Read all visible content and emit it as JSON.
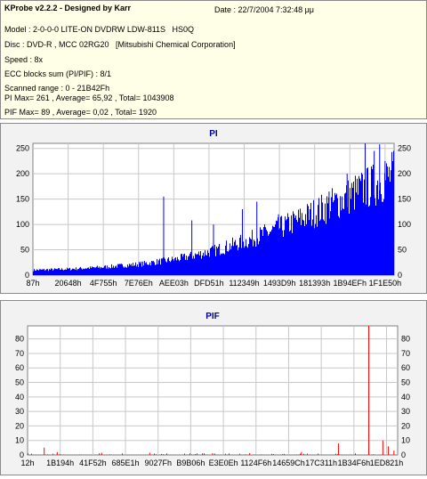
{
  "info": {
    "title": "KProbe v2.2.2 - Designed by Karr",
    "date": "Date : 22/7/2004 7:32:48 μμ",
    "model": "Model : 2-0-0-0 LITE-ON DVDRW LDW-811S   HS0Q",
    "disc": "Disc : DVD-R , MCC 02RG20   [Mitsubishi Chemical Corporation]",
    "speed": "Speed : 8x",
    "ecc": "ECC blocks sum (PI/PIF) : 8/1",
    "scanned": "Scanned range : 0 - 21B42Fh",
    "pi_stats": "PI Max= 261 , Average= 65,92 , Total= 1043908",
    "pif_stats": "PIF Max= 89 , Average= 0,02 , Total= 1920"
  },
  "chart_data": [
    {
      "type": "bar",
      "title": "PI",
      "ylim": [
        0,
        260
      ],
      "yticks": [
        "0",
        "50",
        "100",
        "150",
        "200",
        "250"
      ],
      "yticks_right": [
        "0",
        "50",
        "100",
        "150",
        "200",
        "250"
      ],
      "xticks": [
        "87h",
        "20648h",
        "4F755h",
        "7E76Eh",
        "AEE03h",
        "DFD51h",
        "112349h",
        "1493D9h",
        "181393h",
        "1B94EFh",
        "1F1E50h"
      ],
      "grid": true,
      "color": "#0000ff",
      "trend": [
        [
          0,
          10
        ],
        [
          0.1,
          12
        ],
        [
          0.2,
          16
        ],
        [
          0.3,
          22
        ],
        [
          0.4,
          32
        ],
        [
          0.5,
          48
        ],
        [
          0.6,
          70
        ],
        [
          0.7,
          98
        ],
        [
          0.8,
          130
        ],
        [
          0.9,
          165
        ],
        [
          0.95,
          180
        ],
        [
          1.0,
          200
        ]
      ],
      "spikes": [
        [
          0.362,
          155
        ],
        [
          0.44,
          108
        ],
        [
          0.5,
          100
        ],
        [
          0.58,
          130
        ],
        [
          0.62,
          145
        ],
        [
          0.68,
          120
        ],
        [
          0.82,
          165
        ],
        [
          0.87,
          200
        ],
        [
          0.92,
          261
        ],
        [
          0.945,
          245
        ],
        [
          0.96,
          258
        ],
        [
          0.975,
          225
        ]
      ]
    },
    {
      "type": "bar",
      "title": "PIF",
      "ylim": [
        0,
        89
      ],
      "yticks": [
        "0",
        "10",
        "20",
        "30",
        "40",
        "50",
        "60",
        "70",
        "80"
      ],
      "yticks_right": [
        "0",
        "10",
        "20",
        "30",
        "40",
        "50",
        "60",
        "70",
        "80"
      ],
      "xticks": [
        "12h",
        "1B194h",
        "41F52h",
        "685E1h",
        "9027Fh",
        "B9B06h",
        "E3E0Eh",
        "1124F6h",
        "14659Ch",
        "17C311h",
        "1B34F6h",
        "1ED821h"
      ],
      "grid": true,
      "color": "#ff0000",
      "spikes": [
        [
          0.045,
          5
        ],
        [
          0.08,
          2
        ],
        [
          0.2,
          1.5
        ],
        [
          0.33,
          1.5
        ],
        [
          0.5,
          1.2
        ],
        [
          0.6,
          1.2
        ],
        [
          0.74,
          2
        ],
        [
          0.84,
          8
        ],
        [
          0.922,
          89
        ],
        [
          0.96,
          10
        ],
        [
          0.975,
          6
        ],
        [
          0.99,
          3
        ]
      ]
    }
  ]
}
